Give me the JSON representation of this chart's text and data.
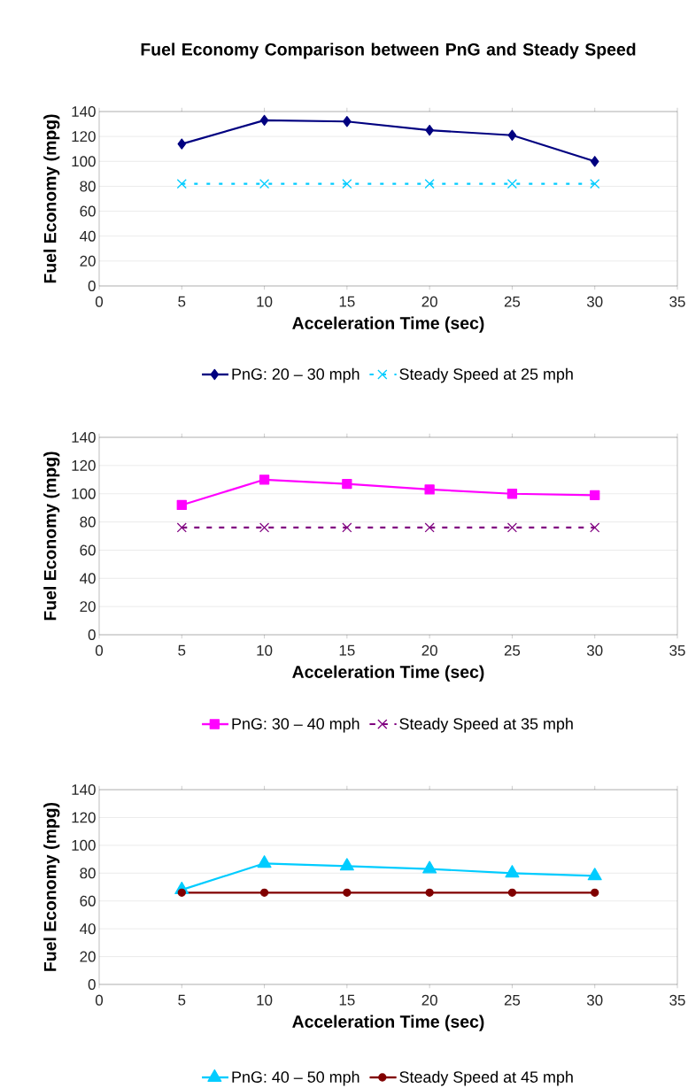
{
  "chart_data": [
    {
      "type": "line",
      "title": "Fuel Economy Comparison between PnG and Steady Speed",
      "xlabel": "Acceleration Time (sec)",
      "ylabel": "Fuel Economy (mpg)",
      "x": [
        5,
        10,
        15,
        20,
        25,
        30
      ],
      "xlim": [
        0,
        35
      ],
      "xticks": [
        0,
        5,
        10,
        15,
        20,
        25,
        30,
        35
      ],
      "ylim": [
        0,
        140
      ],
      "yticks": [
        0,
        20,
        40,
        60,
        80,
        100,
        120,
        140
      ],
      "grid": "y",
      "legend": "bottom",
      "series": [
        {
          "name": "PnG: 20 – 30 mph",
          "color": "#000080",
          "marker": "diamond",
          "line_style": "solid",
          "values": [
            114,
            133,
            132,
            125,
            121,
            100
          ]
        },
        {
          "name": "Steady Speed at 25 mph",
          "color": "#00ccff",
          "marker": "cross",
          "line_style": "dotted",
          "values": [
            82,
            82,
            82,
            82,
            82,
            82
          ]
        }
      ]
    },
    {
      "type": "line",
      "xlabel": "Acceleration Time (sec)",
      "ylabel": "Fuel Economy (mpg)",
      "x": [
        5,
        10,
        15,
        20,
        25,
        30
      ],
      "xlim": [
        0,
        35
      ],
      "xticks": [
        0,
        5,
        10,
        15,
        20,
        25,
        30,
        35
      ],
      "ylim": [
        0,
        140
      ],
      "yticks": [
        0,
        20,
        40,
        60,
        80,
        100,
        120,
        140
      ],
      "grid": "y",
      "legend": "bottom",
      "series": [
        {
          "name": "PnG: 30 – 40 mph",
          "color": "#ff00ff",
          "marker": "square",
          "line_style": "solid",
          "values": [
            92,
            110,
            107,
            103,
            100,
            99
          ]
        },
        {
          "name": "Steady Speed at 35 mph",
          "color": "#800080",
          "marker": "cross",
          "line_style": "dashed",
          "values": [
            76,
            76,
            76,
            76,
            76,
            76
          ]
        }
      ]
    },
    {
      "type": "line",
      "xlabel": "Acceleration Time (sec)",
      "ylabel": "Fuel Economy (mpg)",
      "x": [
        5,
        10,
        15,
        20,
        25,
        30
      ],
      "xlim": [
        0,
        35
      ],
      "xticks": [
        0,
        5,
        10,
        15,
        20,
        25,
        30,
        35
      ],
      "ylim": [
        0,
        140
      ],
      "yticks": [
        0,
        20,
        40,
        60,
        80,
        100,
        120,
        140
      ],
      "grid": "y",
      "legend": "bottom",
      "series": [
        {
          "name": "PnG: 40 – 50 mph",
          "color": "#00ccff",
          "marker": "triangle",
          "line_style": "solid",
          "values": [
            68,
            87,
            85,
            83,
            80,
            78
          ]
        },
        {
          "name": "Steady Speed at 45 mph",
          "color": "#800000",
          "marker": "circle",
          "line_style": "solid",
          "values": [
            66,
            66,
            66,
            66,
            66,
            66
          ]
        }
      ]
    }
  ]
}
